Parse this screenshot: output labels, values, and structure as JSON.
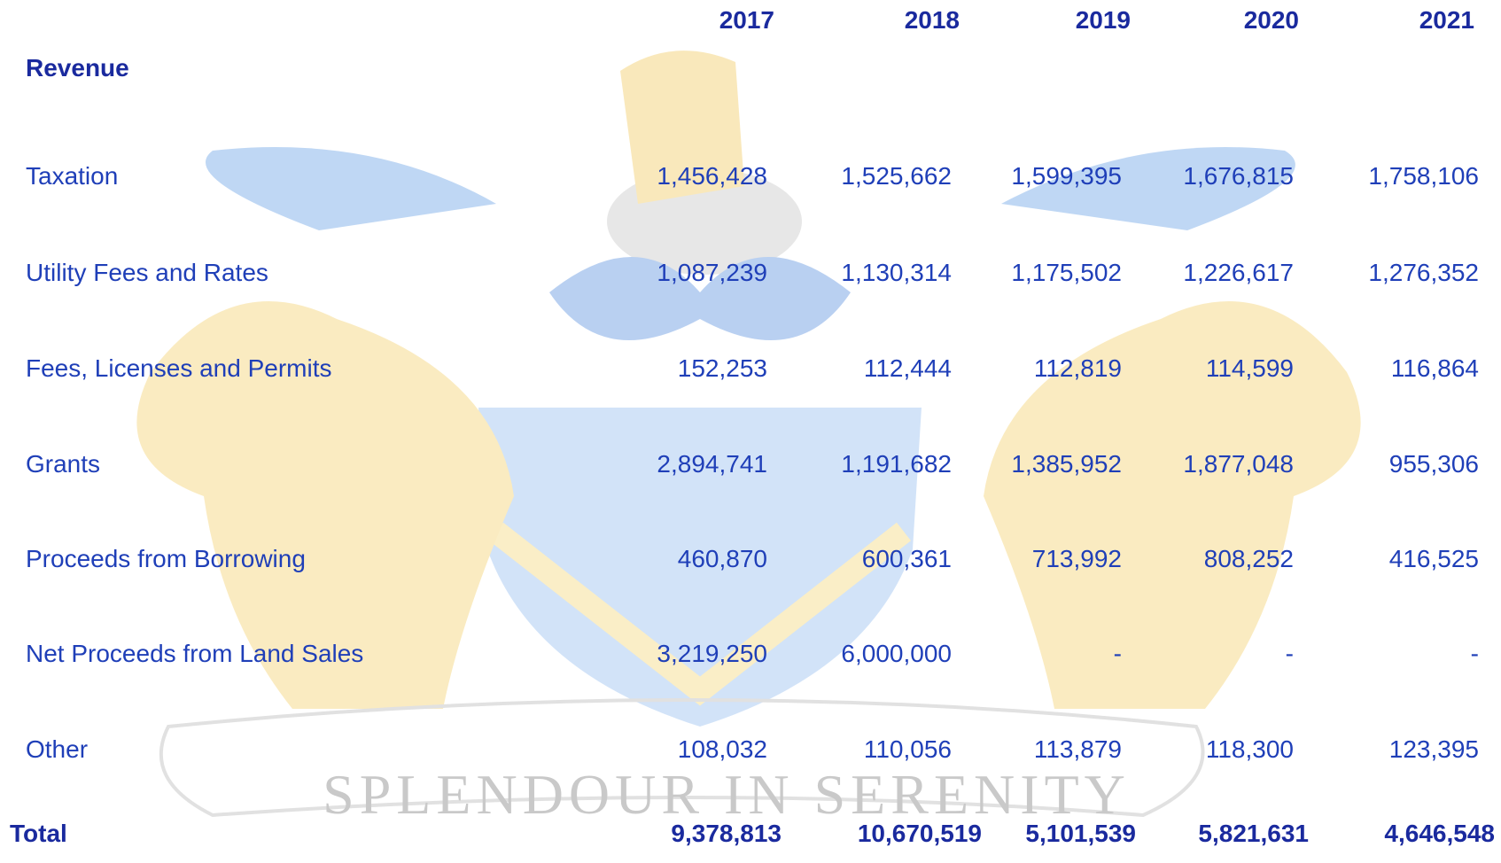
{
  "header": {
    "years": [
      "2017",
      "2018",
      "2019",
      "2020",
      "2021"
    ]
  },
  "section": "Revenue",
  "table": {
    "rows": [
      [
        "Taxation",
        "1,456,428",
        "1,525,662",
        "1,599,395",
        "1,676,815",
        "1,758,106"
      ],
      [
        "Utility Fees and Rates",
        "1,087,239",
        "1,130,314",
        "1,175,502",
        "1,226,617",
        "1,276,352"
      ],
      [
        "Fees, Licenses and Permits",
        "152,253",
        "112,444",
        "112,819",
        "114,599",
        "116,864"
      ],
      [
        "Grants",
        "2,894,741",
        "1,191,682",
        "1,385,952",
        "1,877,048",
        "955,306"
      ],
      [
        "Proceeds from Borrowing",
        "460,870",
        "600,361",
        "713,992",
        "808,252",
        "416,525"
      ],
      [
        "Net Proceeds from Land Sales",
        "3,219,250",
        "6,000,000",
        "-",
        "-",
        "-"
      ],
      [
        "Other",
        "108,032",
        "110,056",
        "113,879",
        "118,300",
        "123,395"
      ]
    ]
  },
  "total": [
    "Total",
    "9,378,813",
    "10,670,519",
    "5,101,539",
    "5,821,631",
    "4,646,548"
  ],
  "watermark_motto": "SPLENDOUR IN SERENITY"
}
